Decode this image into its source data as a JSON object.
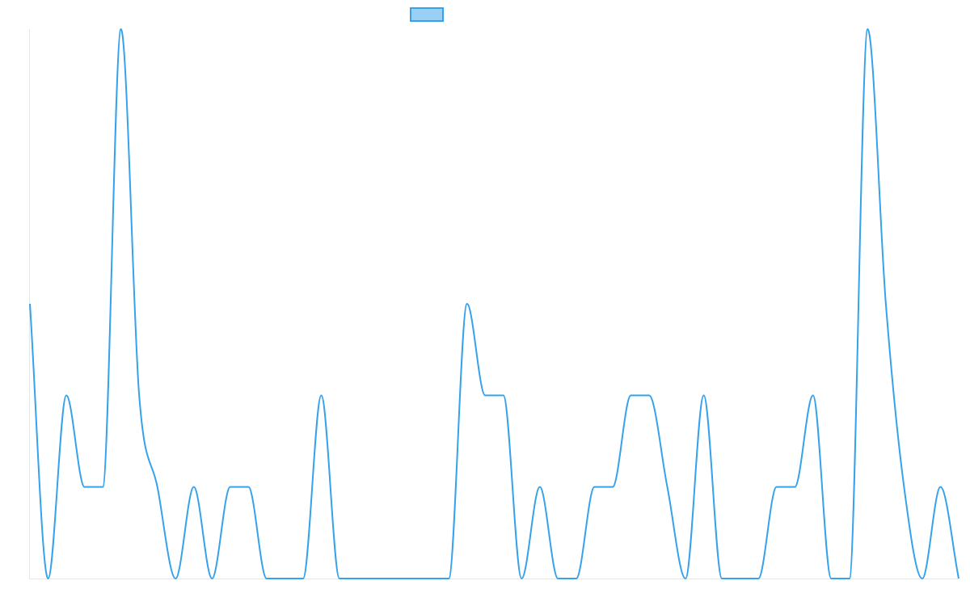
{
  "colors": {
    "series_line": "#36a2eb",
    "legend_fill": "#9ad0f5",
    "axis": "#e6e6e6"
  },
  "chart_data": {
    "type": "line",
    "title": "",
    "xlabel": "",
    "ylabel": "",
    "legend_placement": "top-center",
    "grid": false,
    "ylim": [
      0,
      6
    ],
    "series": [
      {
        "values": [
          3,
          0,
          2,
          1,
          1,
          6,
          2,
          1,
          0,
          1,
          0,
          1,
          1,
          0,
          0,
          0,
          2,
          0,
          0,
          0,
          0,
          0,
          0,
          0,
          3,
          2,
          2,
          0,
          1,
          0,
          0,
          1,
          1,
          2,
          2,
          1,
          0,
          2,
          0,
          0,
          0,
          1,
          1,
          2,
          0,
          0,
          6,
          3,
          1,
          0,
          1,
          0
        ]
      }
    ]
  }
}
